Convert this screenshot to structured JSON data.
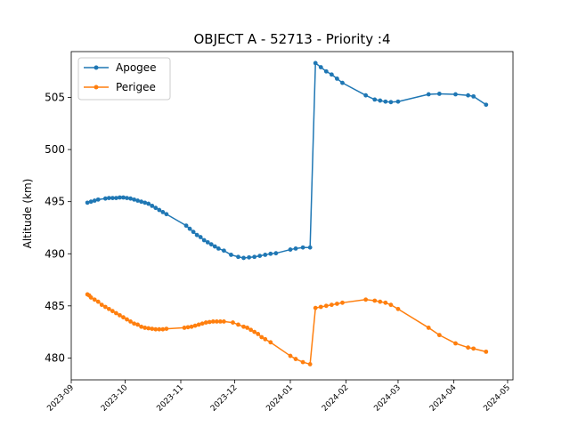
{
  "chart_data": {
    "type": "line",
    "title": "OBJECT A - 52713 - Priority :4",
    "xlabel": "",
    "ylabel": "Altitude (km)",
    "xlim": [
      "2023-09-01",
      "2024-05-04"
    ],
    "ylim": [
      477.9,
      509.4
    ],
    "x_ticks": [
      "2023-09",
      "2023-10",
      "2023-11",
      "2023-12",
      "2024-01",
      "2024-02",
      "2024-03",
      "2024-04",
      "2024-05"
    ],
    "x_tick_dates": [
      "2023-09-01",
      "2023-10-01",
      "2023-11-01",
      "2023-12-01",
      "2024-01-01",
      "2024-02-01",
      "2024-03-01",
      "2024-04-01",
      "2024-05-01"
    ],
    "y_ticks": [
      480,
      485,
      490,
      495,
      500,
      505
    ],
    "grid": false,
    "legend": "top-left",
    "colors": {
      "apogee": "#1f77b4",
      "perigee": "#ff7f0e"
    },
    "series": [
      {
        "name": "Apogee",
        "color": "#1f77b4",
        "points": [
          [
            "2023-09-10",
            494.9
          ],
          [
            "2023-09-12",
            495.0
          ],
          [
            "2023-09-14",
            495.1
          ],
          [
            "2023-09-16",
            495.2
          ],
          [
            "2023-09-20",
            495.3
          ],
          [
            "2023-09-22",
            495.35
          ],
          [
            "2023-09-24",
            495.35
          ],
          [
            "2023-09-26",
            495.35
          ],
          [
            "2023-09-28",
            495.4
          ],
          [
            "2023-09-30",
            495.4
          ],
          [
            "2023-10-02",
            495.35
          ],
          [
            "2023-10-04",
            495.3
          ],
          [
            "2023-10-06",
            495.2
          ],
          [
            "2023-10-08",
            495.1
          ],
          [
            "2023-10-10",
            495.0
          ],
          [
            "2023-10-12",
            494.9
          ],
          [
            "2023-10-14",
            494.8
          ],
          [
            "2023-10-16",
            494.6
          ],
          [
            "2023-10-18",
            494.4
          ],
          [
            "2023-10-20",
            494.2
          ],
          [
            "2023-10-22",
            494.0
          ],
          [
            "2023-10-24",
            493.8
          ],
          [
            "2023-11-04",
            492.7
          ],
          [
            "2023-11-06",
            492.4
          ],
          [
            "2023-11-08",
            492.1
          ],
          [
            "2023-11-10",
            491.8
          ],
          [
            "2023-11-12",
            491.6
          ],
          [
            "2023-11-14",
            491.3
          ],
          [
            "2023-11-16",
            491.1
          ],
          [
            "2023-11-18",
            490.9
          ],
          [
            "2023-11-20",
            490.7
          ],
          [
            "2023-11-22",
            490.5
          ],
          [
            "2023-11-25",
            490.3
          ],
          [
            "2023-11-29",
            489.9
          ],
          [
            "2023-12-03",
            489.7
          ],
          [
            "2023-12-06",
            489.6
          ],
          [
            "2023-12-09",
            489.65
          ],
          [
            "2023-12-12",
            489.7
          ],
          [
            "2023-12-15",
            489.8
          ],
          [
            "2023-12-18",
            489.9
          ],
          [
            "2023-12-21",
            490.0
          ],
          [
            "2023-12-24",
            490.05
          ],
          [
            "2024-01-01",
            490.4
          ],
          [
            "2024-01-04",
            490.5
          ],
          [
            "2024-01-08",
            490.6
          ],
          [
            "2024-01-12",
            490.6
          ],
          [
            "2024-01-15",
            508.3
          ],
          [
            "2024-01-18",
            507.9
          ],
          [
            "2024-01-21",
            507.5
          ],
          [
            "2024-01-24",
            507.2
          ],
          [
            "2024-01-27",
            506.8
          ],
          [
            "2024-01-30",
            506.4
          ],
          [
            "2024-02-12",
            505.2
          ],
          [
            "2024-02-17",
            504.8
          ],
          [
            "2024-02-20",
            504.7
          ],
          [
            "2024-02-23",
            504.6
          ],
          [
            "2024-02-26",
            504.55
          ],
          [
            "2024-03-01",
            504.6
          ],
          [
            "2024-03-18",
            505.3
          ],
          [
            "2024-03-24",
            505.35
          ],
          [
            "2024-04-02",
            505.3
          ],
          [
            "2024-04-09",
            505.2
          ],
          [
            "2024-04-12",
            505.1
          ],
          [
            "2024-04-19",
            504.3
          ]
        ]
      },
      {
        "name": "Perigee",
        "color": "#ff7f0e",
        "points": [
          [
            "2023-09-10",
            486.1
          ],
          [
            "2023-09-11",
            486.0
          ],
          [
            "2023-09-12",
            485.8
          ],
          [
            "2023-09-14",
            485.6
          ],
          [
            "2023-09-16",
            485.4
          ],
          [
            "2023-09-18",
            485.1
          ],
          [
            "2023-09-20",
            484.9
          ],
          [
            "2023-09-22",
            484.7
          ],
          [
            "2023-09-24",
            484.5
          ],
          [
            "2023-09-26",
            484.3
          ],
          [
            "2023-09-28",
            484.1
          ],
          [
            "2023-09-30",
            483.9
          ],
          [
            "2023-10-02",
            483.7
          ],
          [
            "2023-10-04",
            483.5
          ],
          [
            "2023-10-06",
            483.3
          ],
          [
            "2023-10-08",
            483.2
          ],
          [
            "2023-10-10",
            483.0
          ],
          [
            "2023-10-12",
            482.9
          ],
          [
            "2023-10-14",
            482.85
          ],
          [
            "2023-10-16",
            482.8
          ],
          [
            "2023-10-18",
            482.75
          ],
          [
            "2023-10-20",
            482.75
          ],
          [
            "2023-10-22",
            482.75
          ],
          [
            "2023-10-24",
            482.8
          ],
          [
            "2023-11-03",
            482.9
          ],
          [
            "2023-11-05",
            482.95
          ],
          [
            "2023-11-07",
            483.0
          ],
          [
            "2023-11-09",
            483.1
          ],
          [
            "2023-11-11",
            483.2
          ],
          [
            "2023-11-13",
            483.3
          ],
          [
            "2023-11-15",
            483.4
          ],
          [
            "2023-11-17",
            483.45
          ],
          [
            "2023-11-19",
            483.5
          ],
          [
            "2023-11-21",
            483.5
          ],
          [
            "2023-11-23",
            483.5
          ],
          [
            "2023-11-25",
            483.5
          ],
          [
            "2023-11-30",
            483.4
          ],
          [
            "2023-12-03",
            483.2
          ],
          [
            "2023-12-06",
            483.0
          ],
          [
            "2023-12-08",
            482.9
          ],
          [
            "2023-12-10",
            482.7
          ],
          [
            "2023-12-12",
            482.5
          ],
          [
            "2023-12-14",
            482.3
          ],
          [
            "2023-12-16",
            482.0
          ],
          [
            "2023-12-18",
            481.8
          ],
          [
            "2023-12-21",
            481.5
          ],
          [
            "2024-01-01",
            480.2
          ],
          [
            "2024-01-04",
            479.9
          ],
          [
            "2024-01-08",
            479.6
          ],
          [
            "2024-01-12",
            479.4
          ],
          [
            "2024-01-15",
            484.8
          ],
          [
            "2024-01-18",
            484.9
          ],
          [
            "2024-01-21",
            485.0
          ],
          [
            "2024-01-24",
            485.1
          ],
          [
            "2024-01-27",
            485.2
          ],
          [
            "2024-01-30",
            485.3
          ],
          [
            "2024-02-12",
            485.6
          ],
          [
            "2024-02-17",
            485.5
          ],
          [
            "2024-02-20",
            485.4
          ],
          [
            "2024-02-23",
            485.3
          ],
          [
            "2024-02-26",
            485.1
          ],
          [
            "2024-03-01",
            484.7
          ],
          [
            "2024-03-18",
            482.9
          ],
          [
            "2024-03-24",
            482.2
          ],
          [
            "2024-04-02",
            481.4
          ],
          [
            "2024-04-09",
            481.0
          ],
          [
            "2024-04-12",
            480.9
          ],
          [
            "2024-04-19",
            480.6
          ]
        ]
      }
    ]
  }
}
